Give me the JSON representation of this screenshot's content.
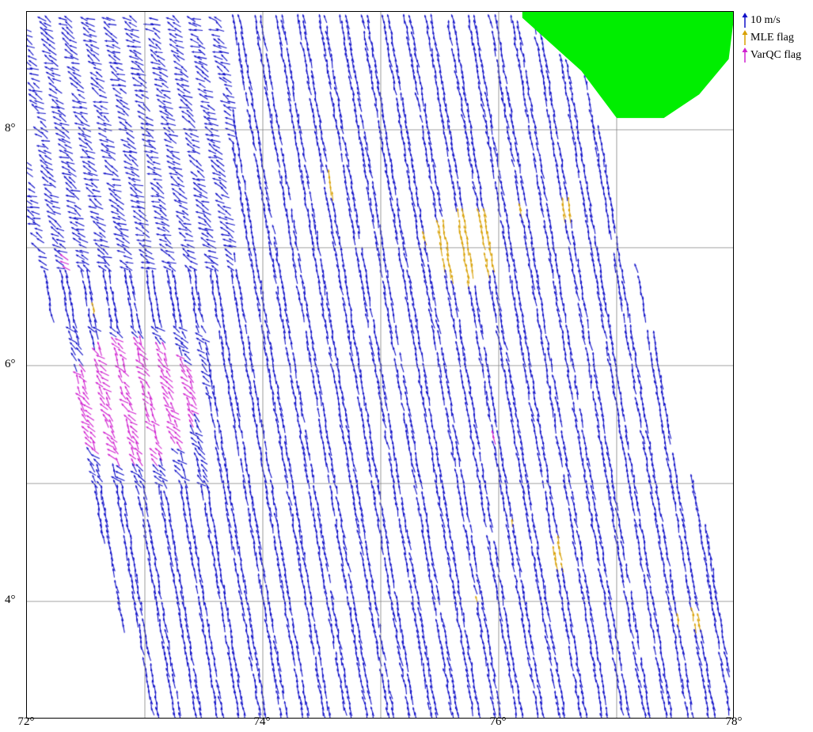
{
  "map": {
    "x_axis": {
      "range": [
        72,
        78
      ],
      "ticks": [
        {
          "value": 72,
          "label": "72°"
        },
        {
          "value": 74,
          "label": "74°"
        },
        {
          "value": 76,
          "label": "76°"
        },
        {
          "value": 78,
          "label": "78°"
        }
      ]
    },
    "y_axis": {
      "range": [
        3,
        9
      ],
      "ticks": [
        {
          "value": 4,
          "label": "4°"
        },
        {
          "value": 6,
          "label": "6°"
        },
        {
          "value": 8,
          "label": "8°"
        }
      ]
    },
    "gridlines": {
      "lon": [
        73,
        74,
        75,
        76,
        77
      ],
      "lat": [
        4,
        5,
        6,
        7,
        8
      ]
    },
    "land_color": "#00ee00",
    "ocean_color": "#ffffff",
    "swath": {
      "corners": [
        [
          72.0,
          8.95
        ],
        [
          76.6,
          8.95
        ],
        [
          77.95,
          3.9
        ],
        [
          77.95,
          3.0
        ],
        [
          73.0,
          3.0
        ],
        [
          72.0,
          7.3
        ]
      ]
    },
    "land": [
      [
        76.2,
        9.0
      ],
      [
        78.0,
        9.0
      ],
      [
        77.95,
        8.6
      ],
      [
        77.7,
        8.3
      ],
      [
        77.4,
        8.1
      ],
      [
        77.0,
        8.1
      ],
      [
        76.7,
        8.5
      ],
      [
        76.2,
        8.95
      ]
    ],
    "mle_flag_regions": [
      [
        75.75,
        7.0,
        0.25,
        0.35
      ],
      [
        75.5,
        7.1,
        0.15,
        0.15
      ],
      [
        77.2,
        7.5,
        0.1,
        0.3
      ],
      [
        76.55,
        7.3,
        0.1,
        0.1
      ],
      [
        76.15,
        7.3,
        0.08,
        0.06
      ],
      [
        72.6,
        6.6,
        0.05,
        0.2
      ],
      [
        76.5,
        4.4,
        0.07,
        0.15
      ],
      [
        77.65,
        3.85,
        0.15,
        0.1
      ],
      [
        74.6,
        7.55,
        0.06,
        0.15
      ],
      [
        75.8,
        4.0,
        0.04,
        0.04
      ],
      [
        73.2,
        5.1,
        0.03,
        0.05
      ],
      [
        76.15,
        4.65,
        0.04,
        0.04
      ]
    ],
    "varqc_flag_regions": [
      [
        72.9,
        5.7,
        0.55,
        0.55
      ],
      [
        72.35,
        6.9,
        0.06,
        0.08
      ],
      [
        75.95,
        5.4,
        0.04,
        0.04
      ],
      [
        77.2,
        7.9,
        0.03,
        0.05
      ]
    ],
    "wind": {
      "swath_count": 34,
      "colors": {
        "normal": "#1010c8",
        "mle": "#d8a000",
        "varqc": "#d020d0"
      }
    }
  },
  "legend": {
    "items": [
      {
        "name": "legend-10ms",
        "label": "10 m/s",
        "color": "#1010c8"
      },
      {
        "name": "legend-mle",
        "label": "MLE flag",
        "color": "#d8a000"
      },
      {
        "name": "legend-varqc",
        "label": "VarQC flag",
        "color": "#d020d0"
      }
    ]
  }
}
